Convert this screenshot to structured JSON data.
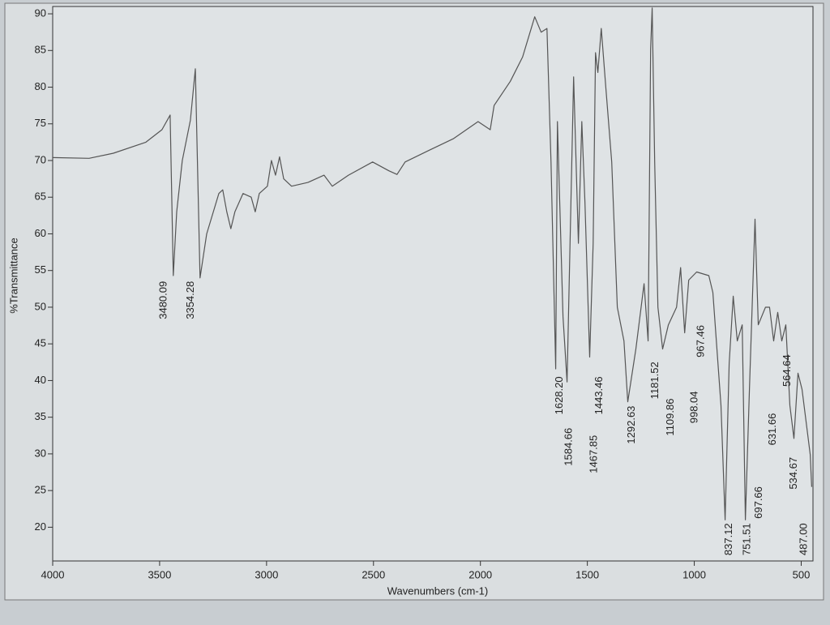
{
  "chart_data": {
    "type": "line",
    "x_label": "Wavenumbers (cm-1)",
    "y_label": "%Transmittance",
    "color": "#555555",
    "xlim": [
      4000,
      445
    ],
    "ylim": [
      15.4,
      91
    ],
    "xticks": [
      4000,
      3500,
      3000,
      2500,
      2000,
      1500,
      1000,
      500
    ],
    "yticks": [
      20,
      25,
      30,
      35,
      40,
      45,
      50,
      55,
      60,
      65,
      70,
      75,
      80,
      85,
      90
    ],
    "x": [
      4000,
      3830,
      3716,
      3564,
      3489,
      3451,
      3436,
      3420,
      3394,
      3356,
      3333,
      3311,
      3280,
      3223,
      3205,
      3186,
      3167,
      3148,
      3110,
      3072,
      3053,
      3034,
      2996,
      2977,
      2958,
      2939,
      2920,
      2883,
      2807,
      2731,
      2693,
      2617,
      2504,
      2428,
      2390,
      2352,
      2239,
      2125,
      2011,
      1954,
      1936,
      1860,
      1803,
      1746,
      1716,
      1689,
      1670,
      1648,
      1640,
      1614,
      1595,
      1564,
      1542,
      1526,
      1511,
      1489,
      1473,
      1462,
      1451,
      1435,
      1413,
      1386,
      1360,
      1329,
      1311,
      1273,
      1235,
      1216,
      1204,
      1197,
      1185,
      1170,
      1148,
      1121,
      1083,
      1064,
      1045,
      1026,
      989,
      932,
      913,
      875,
      856,
      837,
      818,
      799,
      776,
      761,
      742,
      716,
      701,
      667,
      648,
      629,
      610,
      591,
      572,
      553,
      534,
      515,
      496,
      458,
      451
    ],
    "values": [
      70.4,
      70.3,
      71,
      72.5,
      74.2,
      76.2,
      54.3,
      63,
      70,
      75.5,
      82.5,
      54,
      60,
      65.5,
      66,
      63,
      60.7,
      63,
      65.5,
      65,
      63,
      65.5,
      66.5,
      70,
      68,
      70.5,
      67.5,
      66.5,
      67,
      68,
      66.5,
      68,
      69.8,
      68.6,
      68.1,
      69.8,
      71.4,
      73,
      75.3,
      74.2,
      77.5,
      80.8,
      84.1,
      89.6,
      87.5,
      88,
      69.8,
      41.6,
      75.3,
      48.7,
      39.8,
      81.4,
      58.7,
      75.3,
      64.2,
      43.2,
      58.7,
      84.7,
      82,
      88,
      79.7,
      69.8,
      50,
      45.4,
      37.1,
      44.3,
      53.2,
      45.4,
      85.2,
      90.8,
      69.8,
      50,
      44.3,
      47.6,
      50,
      55.4,
      46.5,
      53.7,
      54.8,
      54.3,
      52,
      36.6,
      21,
      42.3,
      51.5,
      45.4,
      47.6,
      21,
      38.8,
      62,
      47.6,
      50,
      50,
      45.4,
      49.3,
      45.4,
      47.6,
      36.6,
      32.1,
      41,
      38.8,
      29.9,
      25.5
    ],
    "annotations": [
      {
        "x": 3480.09,
        "y": 54,
        "label": "3480.09"
      },
      {
        "x": 3354.28,
        "y": 54,
        "label": "3354.28"
      },
      {
        "x": 1628.2,
        "y": 41,
        "label": "1628.20"
      },
      {
        "x": 1584.66,
        "y": 34,
        "label": "1584.66"
      },
      {
        "x": 1467.85,
        "y": 33,
        "label": "1467.85"
      },
      {
        "x": 1443.46,
        "y": 41,
        "label": "1443.46"
      },
      {
        "x": 1292.63,
        "y": 37,
        "label": "1292.63"
      },
      {
        "x": 1181.52,
        "y": 43,
        "label": "1181.52"
      },
      {
        "x": 1109.86,
        "y": 38,
        "label": "1109.86"
      },
      {
        "x": 998.04,
        "y": 39,
        "label": "998.04"
      },
      {
        "x": 967.46,
        "y": 48,
        "label": "967.46"
      },
      {
        "x": 837.12,
        "y": 21,
        "label": "837.12"
      },
      {
        "x": 751.51,
        "y": 21,
        "label": "751.51"
      },
      {
        "x": 697.66,
        "y": 26,
        "label": "697.66"
      },
      {
        "x": 631.66,
        "y": 36,
        "label": "631.66"
      },
      {
        "x": 564.64,
        "y": 44,
        "label": "564.64"
      },
      {
        "x": 534.67,
        "y": 30,
        "label": "534.67"
      },
      {
        "x": 487,
        "y": 21,
        "label": "487.00"
      }
    ]
  }
}
